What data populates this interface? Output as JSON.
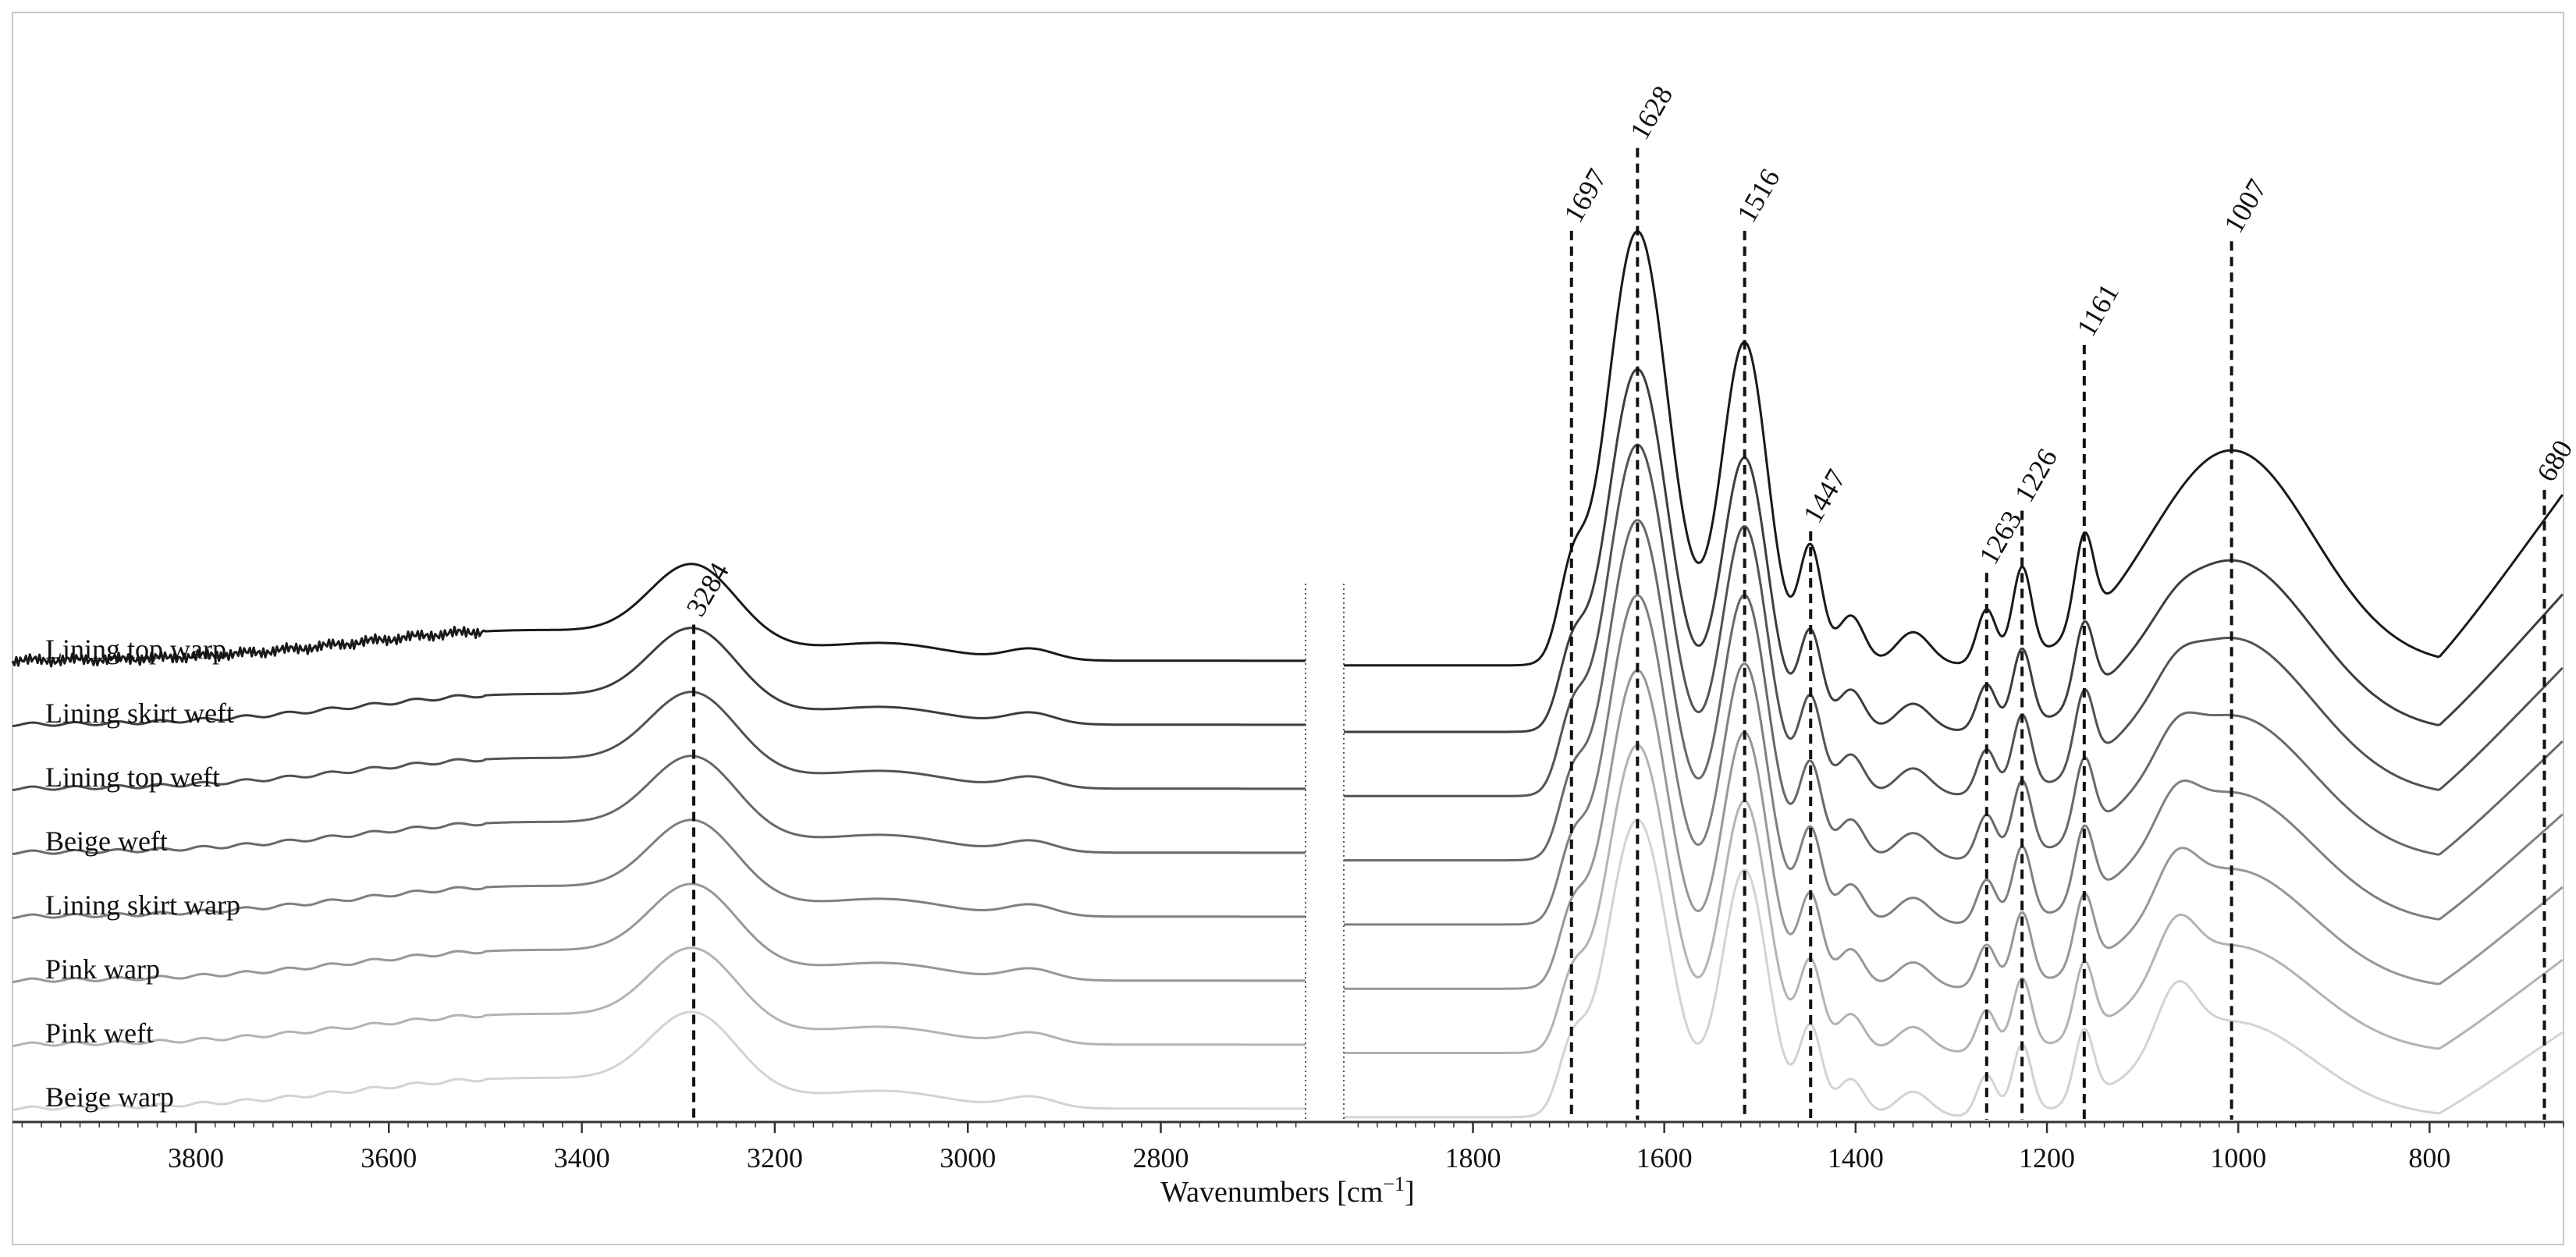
{
  "chart_data": {
    "type": "line",
    "title": "",
    "xlabel": "Wavenumbers [cm",
    "xlabel_superscript": "−1",
    "xlabel_suffix": "]",
    "ylabel": "",
    "x_reversed": true,
    "x_segments": [
      {
        "xlim": [
          3990,
          2650
        ],
        "ticks": [
          3800,
          3600,
          3400,
          3200,
          3000,
          2800
        ]
      },
      {
        "xlim": [
          1935,
          660
        ],
        "ticks": [
          1800,
          1600,
          1400,
          1200,
          1000,
          800
        ]
      }
    ],
    "peaks": [
      {
        "x": 3284,
        "label": "3284",
        "top": 0.52
      },
      {
        "x": 1697,
        "label": "1697",
        "top": 0.14
      },
      {
        "x": 1628,
        "label": "1628",
        "top": 0.06
      },
      {
        "x": 1516,
        "label": "1516",
        "top": 0.14
      },
      {
        "x": 1447,
        "label": "1447",
        "top": 0.43
      },
      {
        "x": 1263,
        "label": "1263",
        "top": 0.47
      },
      {
        "x": 1226,
        "label": "1226",
        "top": 0.41
      },
      {
        "x": 1161,
        "label": "1161",
        "top": 0.25
      },
      {
        "x": 1007,
        "label": "1007",
        "top": 0.15
      },
      {
        "x": 680,
        "label": "680",
        "top": 0.39
      }
    ],
    "series": [
      {
        "name": "Lining top warp",
        "color": "#1a1a1a"
      },
      {
        "name": "Lining skirt weft",
        "color": "#3d3d3d"
      },
      {
        "name": "Lining top weft",
        "color": "#535353"
      },
      {
        "name": "Beige weft",
        "color": "#686868"
      },
      {
        "name": "Lining skirt warp",
        "color": "#7f7f7f"
      },
      {
        "name": "Pink warp",
        "color": "#979797"
      },
      {
        "name": "Pink weft",
        "color": "#b3b3b3"
      },
      {
        "name": "Beige warp",
        "color": "#d3d3d3"
      }
    ]
  }
}
